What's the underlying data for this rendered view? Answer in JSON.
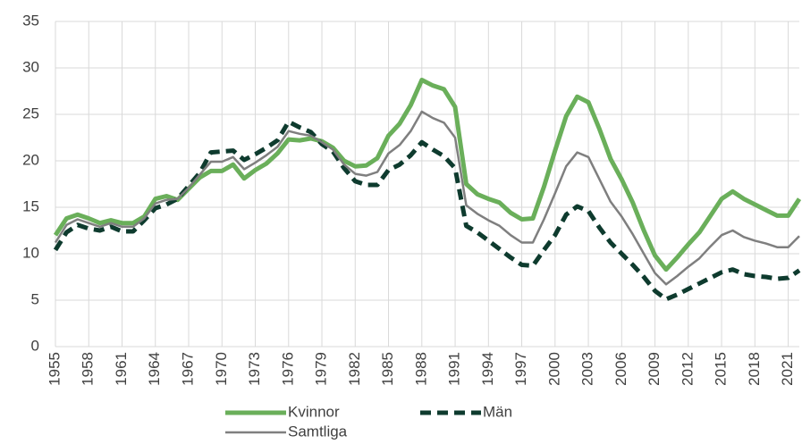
{
  "chart_data": {
    "type": "line",
    "x": [
      1955,
      1956,
      1957,
      1958,
      1959,
      1960,
      1961,
      1962,
      1963,
      1964,
      1965,
      1966,
      1967,
      1968,
      1969,
      1970,
      1971,
      1972,
      1973,
      1974,
      1975,
      1976,
      1977,
      1978,
      1979,
      1980,
      1981,
      1982,
      1983,
      1984,
      1985,
      1986,
      1987,
      1988,
      1989,
      1990,
      1991,
      1992,
      1993,
      1994,
      1995,
      1996,
      1997,
      1998,
      1999,
      2000,
      2001,
      2002,
      2003,
      2004,
      2005,
      2006,
      2007,
      2008,
      2009,
      2010,
      2011,
      2012,
      2013,
      2014,
      2015,
      2016,
      2017,
      2018,
      2019,
      2020,
      2021,
      2022
    ],
    "series": [
      {
        "name": "Kvinnor",
        "color": "#6aaf5a",
        "dash": false,
        "width": 5,
        "values": [
          12,
          13.8,
          14.2,
          13.8,
          13.3,
          13.6,
          13.3,
          13.3,
          14,
          15.9,
          16.2,
          15.8,
          17,
          18.2,
          18.9,
          18.9,
          19.6,
          18.1,
          19,
          19.7,
          20.8,
          22.3,
          22.2,
          22.4,
          22.1,
          21.4,
          20,
          19.4,
          19.5,
          20.3,
          22.7,
          24,
          26,
          28.7,
          28.1,
          27.7,
          25.8,
          17.5,
          16.4,
          15.9,
          15.5,
          14.4,
          13.7,
          13.8,
          17.2,
          21.1,
          24.8,
          26.9,
          26.3,
          23.4,
          20.2,
          18,
          15.5,
          12.5,
          9.8,
          8.3,
          9.6,
          11,
          12.3,
          14.1,
          15.9,
          16.7,
          15.9,
          15.3,
          14.7,
          14.1,
          14.1,
          15.9
        ]
      },
      {
        "name": "Män",
        "color": "#0e3b2e",
        "dash": true,
        "width": 5,
        "values": [
          10.4,
          12.3,
          13.1,
          12.7,
          12.5,
          12.9,
          12.4,
          12.4,
          13.6,
          14.9,
          15.3,
          15.9,
          17.3,
          18.7,
          20.9,
          21,
          21.1,
          20.1,
          20.7,
          21.4,
          22.2,
          24.2,
          23.6,
          23.1,
          21.8,
          21,
          19.2,
          17.8,
          17.4,
          17.4,
          19,
          19.6,
          20.6,
          22,
          21.2,
          20.5,
          19.2,
          13,
          12.3,
          11.4,
          10.5,
          9.6,
          8.8,
          8.7,
          10.4,
          12,
          14.2,
          15.1,
          14.6,
          12.8,
          11.2,
          10,
          8.8,
          7.5,
          6,
          5.1,
          5.6,
          6.2,
          6.8,
          7.4,
          8,
          8.3,
          7.8,
          7.6,
          7.5,
          7.3,
          7.4,
          8.2
        ]
      },
      {
        "name": "Samtliga",
        "color": "#7f7f7f",
        "dash": false,
        "width": 2.5,
        "values": [
          11.2,
          13.1,
          13.7,
          13.3,
          12.9,
          13.3,
          12.9,
          12.9,
          13.8,
          15.4,
          15.8,
          15.9,
          17.1,
          18.5,
          19.9,
          19.9,
          20.4,
          19.1,
          19.8,
          20.6,
          21.5,
          23.2,
          22.9,
          22.7,
          22,
          21.2,
          19.6,
          18.6,
          18.4,
          18.8,
          20.8,
          21.7,
          23.2,
          25.3,
          24.6,
          24.1,
          22.5,
          15.2,
          14.3,
          13.6,
          13,
          12,
          11.2,
          11.2,
          13.7,
          16.5,
          19.4,
          20.9,
          20.4,
          18,
          15.6,
          14,
          12.1,
          10,
          7.9,
          6.7,
          7.6,
          8.6,
          9.5,
          10.8,
          12,
          12.5,
          11.8,
          11.4,
          11.1,
          10.7,
          10.7,
          11.9
        ]
      }
    ],
    "xlim": [
      1955,
      2022
    ],
    "xticks": [
      1955,
      1958,
      1961,
      1964,
      1967,
      1970,
      1973,
      1976,
      1979,
      1982,
      1985,
      1988,
      1991,
      1994,
      1997,
      2000,
      2003,
      2006,
      2009,
      2012,
      2015,
      2018,
      2021
    ],
    "ylim": [
      0,
      35
    ],
    "yticks": [
      0,
      5,
      10,
      15,
      20,
      25,
      30,
      35
    ],
    "grid": true,
    "legend": "bottom"
  }
}
